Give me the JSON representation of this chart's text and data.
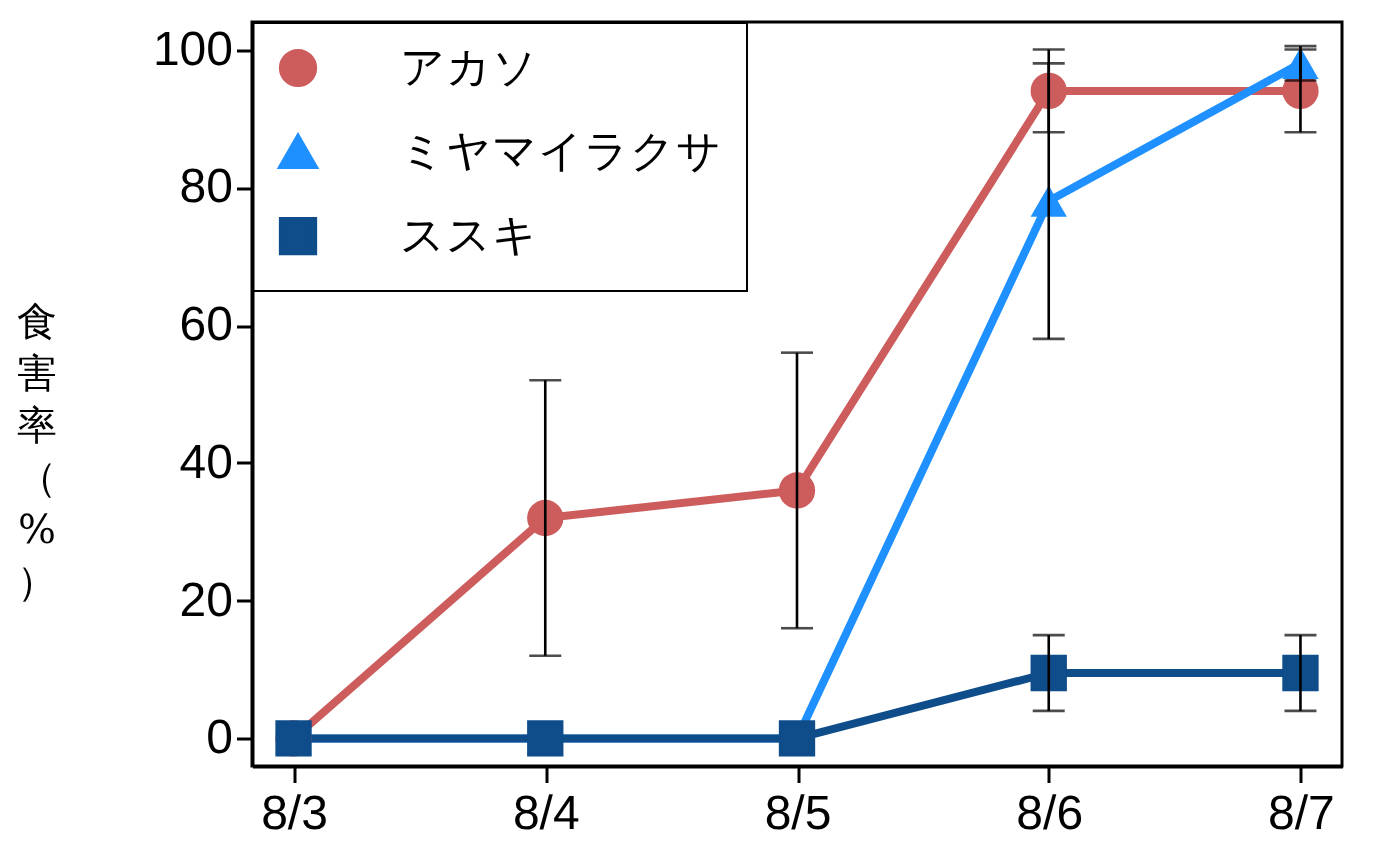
{
  "chart_data": {
    "type": "line",
    "ylabel": "食害率（%）",
    "categories": [
      "8/3",
      "8/4",
      "8/5",
      "8/6",
      "8/7"
    ],
    "ylim": [
      -4,
      104
    ],
    "yticks": [
      0,
      20,
      40,
      60,
      80,
      100
    ],
    "grid": false,
    "legend": "top left",
    "line_style": "solid",
    "series": [
      {
        "name": "アカソ",
        "color": "#cd5c5c",
        "marker": "circle",
        "values": [
          0,
          32,
          36,
          94,
          94
        ],
        "errors": [
          null,
          20,
          20,
          6,
          6
        ]
      },
      {
        "name": "ミヤマイラクサ",
        "color": "#1e90ff",
        "marker": "triangle",
        "values": [
          0,
          0,
          0,
          78,
          98
        ],
        "errors": [
          null,
          null,
          null,
          20,
          2.5
        ]
      },
      {
        "name": "ススキ",
        "color": "#0f4c8a",
        "marker": "square",
        "values": [
          0,
          0,
          0,
          9.5,
          9.5
        ],
        "errors": [
          null,
          null,
          null,
          5.5,
          5.5
        ]
      }
    ]
  }
}
